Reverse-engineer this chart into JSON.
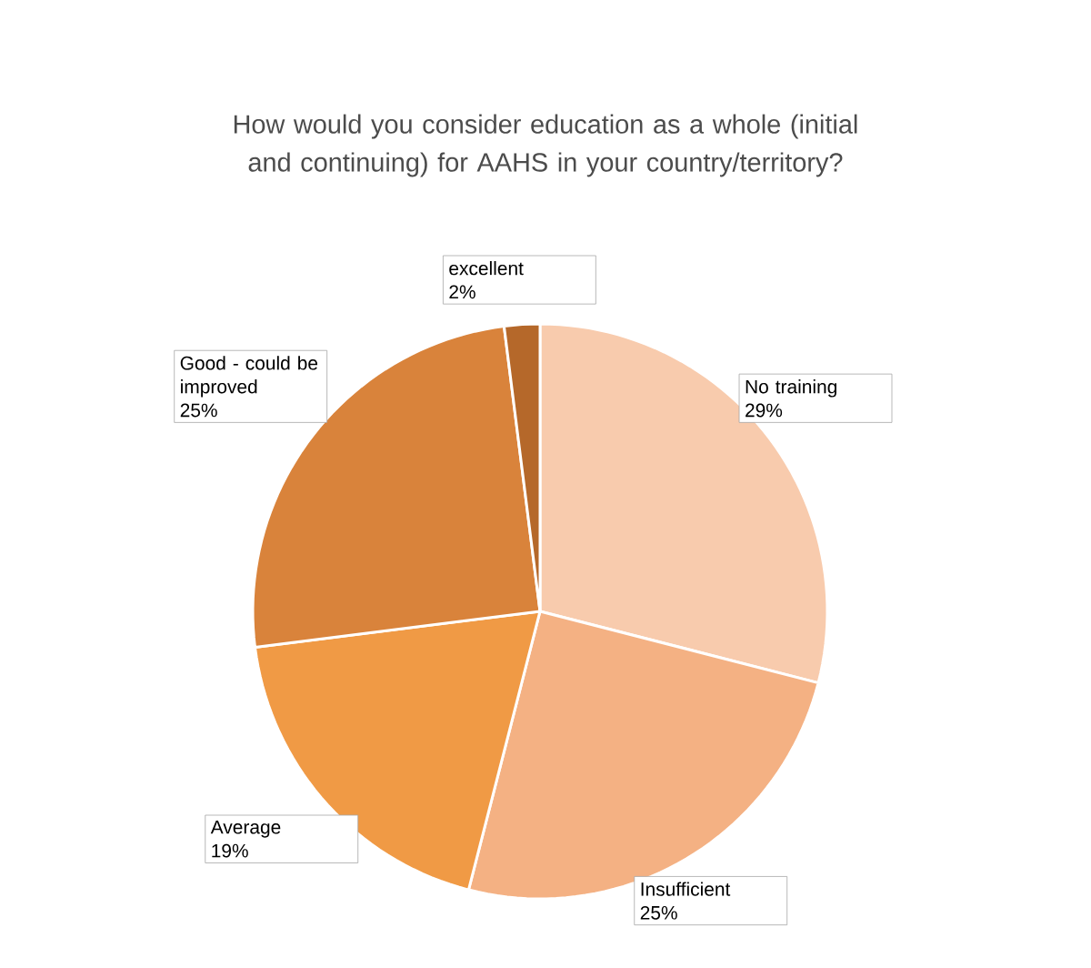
{
  "chart_data": {
    "type": "pie",
    "title": "How would you consider education as a whole (initial and continuing) for AAHS in your country/territory?",
    "categories": [
      "No training",
      "Insufficient",
      "Average",
      "Good - could be improved",
      "excellent"
    ],
    "values": [
      29,
      25,
      19,
      25,
      2
    ],
    "value_labels": [
      "29%",
      "25%",
      "19%",
      "25%",
      "2%"
    ],
    "colors": [
      "#f8cbad",
      "#f4b183",
      "#f09a45",
      "#d9833b",
      "#b5682a"
    ]
  }
}
